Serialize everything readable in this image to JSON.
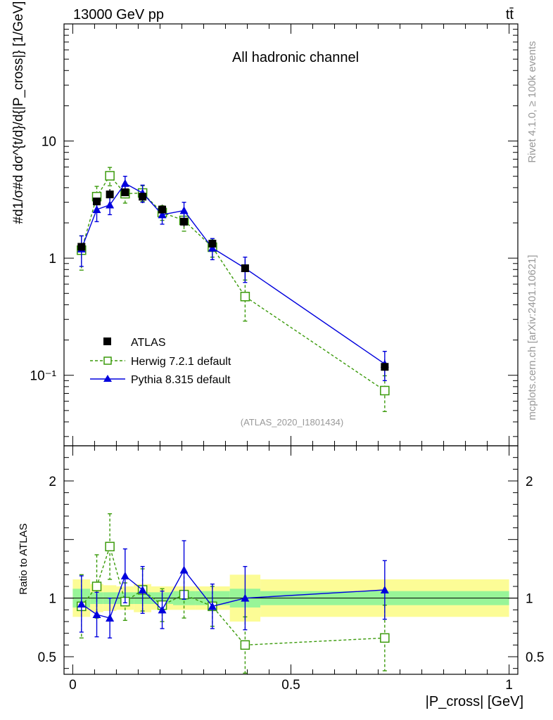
{
  "header": {
    "energy_label": "13000 GeV pp",
    "process_label": "tt̄"
  },
  "side_labels": {
    "rivet": "Rivet 4.1.0, ≥ 100k events",
    "mcplots": "mcplots.cern.ch [arXiv:2401.10621]"
  },
  "chart_data": [
    {
      "type": "scatter",
      "panel": "main",
      "title": "All hadronic channel",
      "analysis_label": "(ATLAS_2020_I1801434)",
      "ylabel": "#d1/σ#d dσ^{t/d}/d{|P_cross|} [1/GeV]",
      "yscale": "log",
      "ylim": [
        0.025,
        100
      ],
      "xlim": [
        -0.02,
        1.02
      ],
      "y_tick_labels": [
        "10⁻¹",
        "1",
        "10"
      ],
      "legend_position": "bottom-left",
      "bins": [
        [
          0.0,
          0.04
        ],
        [
          0.04,
          0.07
        ],
        [
          0.07,
          0.1
        ],
        [
          0.1,
          0.14
        ],
        [
          0.14,
          0.18
        ],
        [
          0.18,
          0.23
        ],
        [
          0.23,
          0.28
        ],
        [
          0.28,
          0.36
        ],
        [
          0.36,
          0.43
        ],
        [
          0.43,
          1.0
        ]
      ],
      "series": [
        {
          "name": "ATLAS",
          "x": [
            0.02,
            0.055,
            0.085,
            0.12,
            0.16,
            0.205,
            0.255,
            0.32,
            0.395,
            0.715
          ],
          "y": [
            1.25,
            3.05,
            3.5,
            3.65,
            3.35,
            2.6,
            2.05,
            1.33,
            0.82,
            0.118
          ],
          "band_inner": [
            0.08,
            0.05,
            0.05,
            0.05,
            0.05,
            0.05,
            0.06,
            0.06,
            0.08,
            0.06
          ],
          "band_outer": [
            0.16,
            0.12,
            0.11,
            0.1,
            0.12,
            0.1,
            0.1,
            0.1,
            0.2,
            0.16
          ]
        },
        {
          "name": "Herwig 7.2.1 default",
          "x": [
            0.02,
            0.055,
            0.085,
            0.12,
            0.16,
            0.205,
            0.255,
            0.32,
            0.395,
            0.715
          ],
          "y": [
            1.17,
            3.35,
            5.05,
            3.55,
            3.6,
            2.45,
            2.1,
            1.24,
            0.47,
            0.074
          ],
          "yerr": [
            0.38,
            0.75,
            0.9,
            0.6,
            0.55,
            0.35,
            0.4,
            0.22,
            0.18,
            0.025
          ]
        },
        {
          "name": "Pythia 8.315 default",
          "x": [
            0.02,
            0.055,
            0.085,
            0.12,
            0.16,
            0.205,
            0.255,
            0.32,
            0.395,
            0.715
          ],
          "y": [
            1.2,
            2.6,
            2.85,
            4.35,
            3.6,
            2.35,
            2.55,
            1.22,
            0.82,
            0.125
          ],
          "yerr": [
            0.35,
            0.55,
            0.5,
            0.65,
            0.6,
            0.4,
            0.45,
            0.25,
            0.2,
            0.035
          ]
        }
      ]
    },
    {
      "type": "scatter",
      "panel": "ratio",
      "ylabel": "Ratio to ATLAS",
      "xlabel": "|P_cross| [GeV]",
      "ylim": [
        0.35,
        2.3
      ],
      "xlim": [
        -0.02,
        1.02
      ],
      "y_tick_labels": [
        "0.5",
        "1",
        "2"
      ],
      "x_tick_labels": [
        "0",
        "0.5",
        "1"
      ],
      "series": [
        {
          "name": "Herwig 7.2.1 default",
          "x": [
            0.02,
            0.055,
            0.085,
            0.12,
            0.16,
            0.205,
            0.255,
            0.32,
            0.395,
            0.715
          ],
          "y": [
            0.93,
            1.1,
            1.44,
            0.97,
            1.07,
            0.94,
            1.03,
            0.93,
            0.6,
            0.66
          ],
          "yerr": [
            0.27,
            0.27,
            0.28,
            0.16,
            0.18,
            0.14,
            0.2,
            0.17,
            0.24,
            0.28
          ]
        },
        {
          "name": "Pythia 8.315 default",
          "x": [
            0.02,
            0.055,
            0.085,
            0.12,
            0.16,
            0.205,
            0.255,
            0.32,
            0.395,
            0.715
          ],
          "y": [
            0.95,
            0.86,
            0.83,
            1.19,
            1.07,
            0.9,
            1.24,
            0.93,
            1.0,
            1.07
          ],
          "yerr": [
            0.24,
            0.19,
            0.17,
            0.23,
            0.2,
            0.16,
            0.25,
            0.19,
            0.27,
            0.25
          ]
        }
      ]
    }
  ],
  "colors": {
    "atlas": "#000000",
    "herwig": "#3a9a0a",
    "pythia": "#0000dd",
    "band_inner": "#98f598",
    "band_outer": "#fcfc96",
    "muted_text": "#999999"
  }
}
